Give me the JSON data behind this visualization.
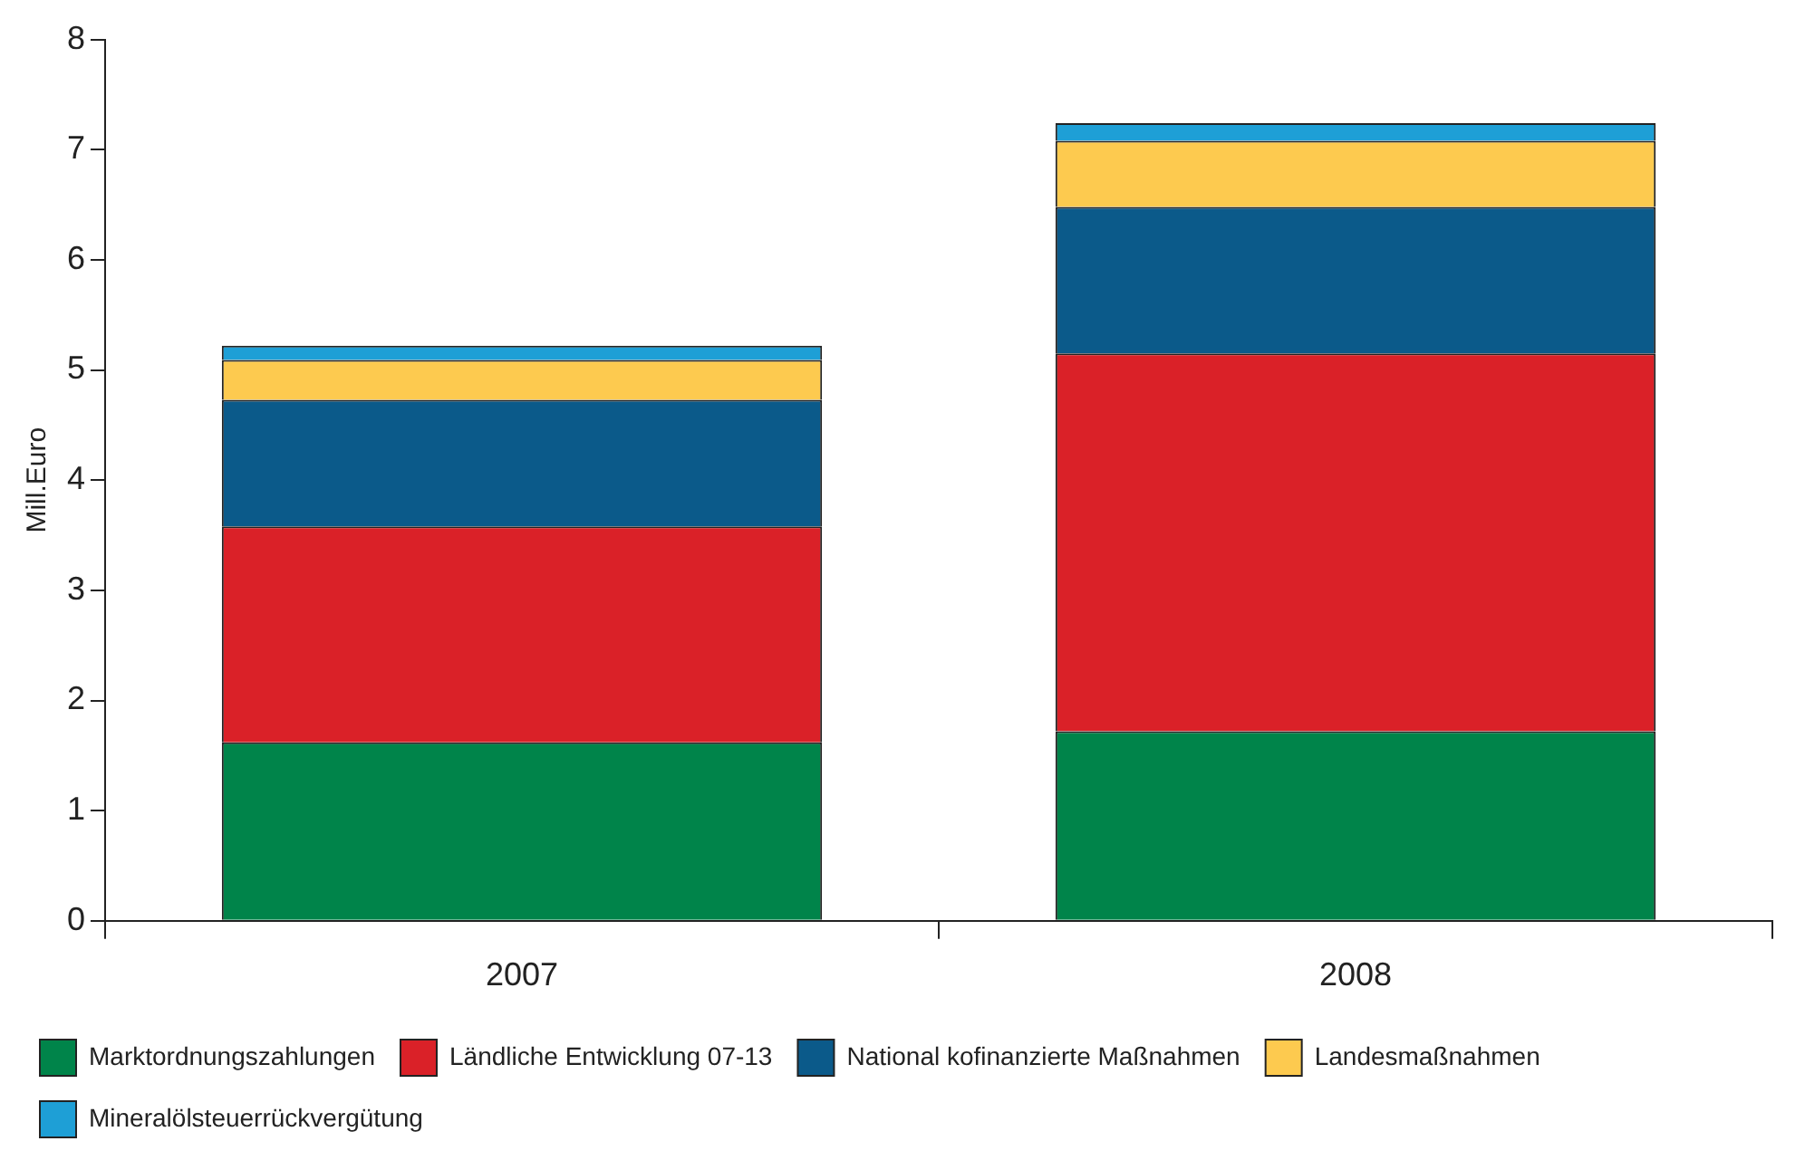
{
  "chart_data": {
    "type": "bar",
    "stacked": true,
    "ylabel": "Mill.Euro",
    "categories": [
      "2007",
      "2008"
    ],
    "series": [
      {
        "name": "Marktordnungszahlungen",
        "color": "#00844a",
        "values": [
          1.62,
          1.72
        ]
      },
      {
        "name": "Ländliche Entwicklung 07-13",
        "color": "#da2128",
        "values": [
          1.96,
          3.43
        ]
      },
      {
        "name": "National kofinanzierte Maßnahmen",
        "color": "#0b5a8a",
        "values": [
          1.15,
          1.33
        ]
      },
      {
        "name": "Landesmaßnahmen",
        "color": "#fdca4f",
        "values": [
          0.36,
          0.6
        ]
      },
      {
        "name": "Mineralölsteuerrückvergütung",
        "color": "#1e9fd6",
        "values": [
          0.13,
          0.16
        ]
      }
    ],
    "ylim": [
      0,
      8
    ],
    "yticks": [
      0,
      1,
      2,
      3,
      4,
      5,
      6,
      7,
      8
    ],
    "grid": false,
    "legend": "bottom"
  }
}
